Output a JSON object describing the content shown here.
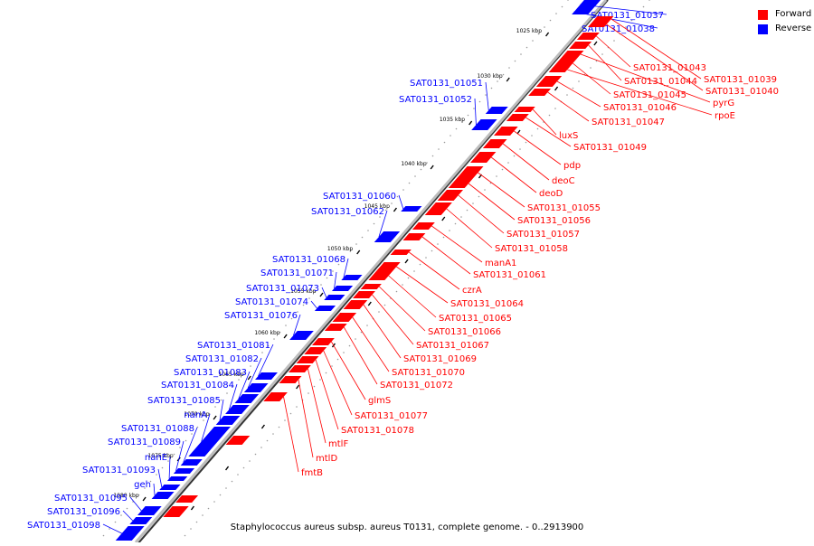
{
  "legend": {
    "forward_label": "Forward",
    "reverse_label": "Reverse",
    "forward_color": "#ff0000",
    "reverse_color": "#0000ff"
  },
  "caption": "Staphylococcus aureus subsp. aureus T0131, complete genome. - 0..2913900",
  "kbp_ticks": [
    "1025 kbp",
    "1030 kbp",
    "1035 kbp",
    "1040 kbp",
    "1045 kbp",
    "1050 kbp",
    "1055 kbp",
    "1060 kbp",
    "1065 kbp",
    "1070 kbp",
    "1075 kbp",
    "1080 kbp"
  ],
  "reverse_genes": [
    "SAT0131_01037",
    "SAT0131_01038",
    "SAT0131_01051",
    "SAT0131_01052",
    "SAT0131_01060",
    "SAT0131_01062",
    "SAT0131_01068",
    "SAT0131_01071",
    "SAT0131_01073",
    "SAT0131_01074",
    "SAT0131_01076",
    "SAT0131_01081",
    "SAT0131_01082",
    "SAT0131_01083",
    "SAT0131_01084",
    "SAT0131_01085",
    "nanA",
    "SAT0131_01088",
    "SAT0131_01089",
    "nanE",
    "SAT0131_01093",
    "geh",
    "SAT0131_01095",
    "SAT0131_01096",
    "SAT0131_01098"
  ],
  "forward_genes": [
    "SAT0131_01039",
    "SAT0131_01040",
    "SAT0131_01043",
    "SAT0131_01044",
    "pyrG",
    "SAT0131_01045",
    "rpoE",
    "SAT0131_01046",
    "SAT0131_01047",
    "luxS",
    "SAT0131_01049",
    "pdp",
    "deoC",
    "deoD",
    "SAT0131_01055",
    "SAT0131_01056",
    "SAT0131_01057",
    "SAT0131_01058",
    "manA1",
    "SAT0131_01061",
    "czrA",
    "SAT0131_01064",
    "SAT0131_01065",
    "SAT0131_01066",
    "SAT0131_01067",
    "SAT0131_01069",
    "SAT0131_01070",
    "SAT0131_01072",
    "glmS",
    "SAT0131_01077",
    "SAT0131_01078",
    "mtlF",
    "mtlD",
    "fmtB"
  ]
}
